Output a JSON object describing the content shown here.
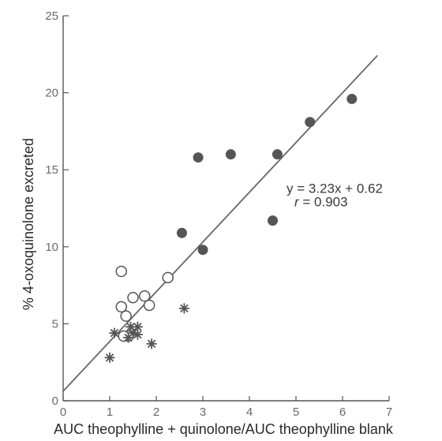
{
  "chart_data": {
    "type": "scatter",
    "title": "",
    "xlabel": "AUC theophylline + quinolone/AUC theophylline blank",
    "ylabel": "% 4-oxoquinolone excreted",
    "xlim": [
      0,
      7
    ],
    "ylim": [
      0,
      25
    ],
    "xticks": [
      0,
      1,
      2,
      3,
      4,
      5,
      6,
      7
    ],
    "yticks": [
      0,
      5,
      10,
      15,
      20,
      25
    ],
    "grid": false,
    "series": [
      {
        "marker": "filled-circle",
        "color": "#555555",
        "x": [
          2.55,
          2.9,
          3.0,
          3.6,
          4.5,
          4.6,
          5.3,
          6.2
        ],
        "y": [
          10.9,
          15.8,
          9.8,
          16.0,
          11.7,
          16.0,
          18.1,
          19.6
        ]
      },
      {
        "marker": "open-circle",
        "color": "#555555",
        "x": [
          1.25,
          1.25,
          1.35,
          1.4,
          1.5,
          1.75,
          1.85,
          2.25,
          1.3
        ],
        "y": [
          8.4,
          6.1,
          5.5,
          4.2,
          6.7,
          6.8,
          6.2,
          8.0,
          4.2
        ]
      },
      {
        "marker": "asterisk",
        "color": "#555555",
        "x": [
          1.0,
          1.1,
          1.4,
          1.45,
          1.5,
          1.6,
          1.9,
          2.6,
          1.6
        ],
        "y": [
          2.8,
          4.4,
          4.1,
          4.8,
          4.4,
          4.8,
          3.7,
          6.0,
          4.3
        ]
      }
    ],
    "regression": {
      "slope": 3.23,
      "intercept": 0.62,
      "x_range": [
        0,
        6.75
      ],
      "color": "#666666"
    },
    "annotations": {
      "equation": "y = 3.23x + 0.62",
      "r_label": "r",
      "r_value": " = 0.903",
      "position": [
        5.0,
        13.8
      ]
    }
  }
}
